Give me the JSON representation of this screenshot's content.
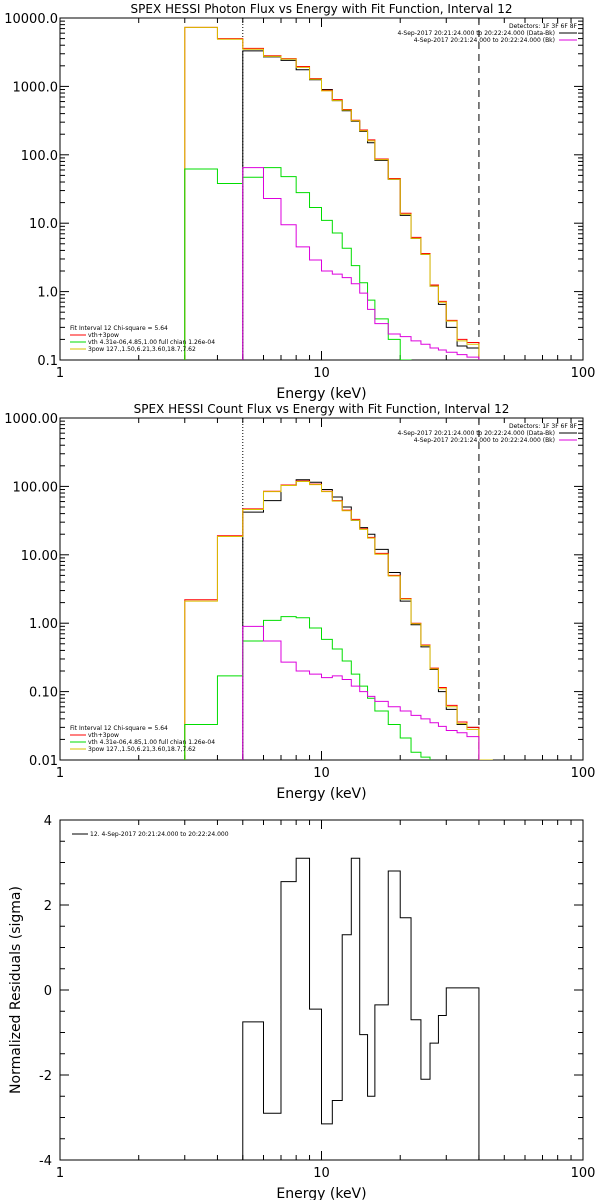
{
  "figure": {
    "panels": 3,
    "x_axis_scale": "log",
    "x_tick_labels": [
      "1",
      "10",
      "100"
    ]
  },
  "chart_data": [
    {
      "type": "line",
      "title": "SPEX HESSI Photon Flux vs Energy with Fit Function, Interval 12",
      "xlabel": "Energy (keV)",
      "ylabel": "",
      "xscale": "log",
      "yscale": "log",
      "xlim": [
        1,
        100
      ],
      "ylim": [
        0.1,
        10000
      ],
      "y_tick_labels": [
        "0.1",
        "1.0",
        "10.0",
        "100.0",
        "1000.0",
        "10000.0"
      ],
      "legend_top": [
        "Detectors: 1F 3F 6F 8F",
        "4-Sep-2017 20:21:24.000 to 20:22:24.000 (Data-Bk)",
        "4-Sep-2017 20:21:24.000 to 20:22:24.000 (Bk)"
      ],
      "legend_top_placement": "top-right",
      "legend_bottom": [
        "Fit Interval 12   Chi-square = 5.64",
        "vth+3pow",
        "vth 4.31e-06,4.85,1.00  full chian 1.26e-04",
        "3pow 127.,1.50,6.21,3.60,18.7,7.62"
      ],
      "legend_bottom_placement": "bottom-left",
      "vlines": [
        5,
        40
      ],
      "series": [
        {
          "name": "Data-Bk",
          "color": "#000000",
          "edges": [
            5,
            6,
            7,
            8,
            9,
            10,
            11,
            12,
            13,
            14,
            15,
            16,
            18,
            20,
            22,
            24,
            26,
            28,
            30,
            33,
            36,
            40
          ],
          "values": [
            3300,
            2700,
            2400,
            1750,
            1250,
            900,
            620,
            440,
            310,
            220,
            150,
            83,
            44,
            13,
            6,
            3.5,
            1.2,
            0.65,
            0.3,
            0.16,
            0.15
          ]
        },
        {
          "name": "vth+3pow",
          "color": "#ff0000",
          "edges": [
            3,
            4,
            5,
            6,
            7,
            8,
            9,
            10,
            11,
            12,
            13,
            14,
            15,
            16,
            18,
            20,
            22,
            24,
            26,
            28,
            30,
            33,
            36,
            40
          ],
          "values": [
            7300,
            5000,
            3600,
            2800,
            2550,
            1950,
            1300,
            880,
            640,
            460,
            320,
            230,
            165,
            87,
            45,
            14,
            6.2,
            3.6,
            1.25,
            0.72,
            0.38,
            0.2,
            0.18
          ]
        },
        {
          "name": "3pow",
          "color": "#d8c000",
          "edges": [
            3,
            4,
            5,
            6,
            7,
            8,
            9,
            10,
            11,
            12,
            13,
            14,
            15,
            16,
            18,
            20,
            22,
            24,
            26,
            28,
            30,
            33,
            36,
            40
          ],
          "values": [
            7300,
            4900,
            3500,
            2750,
            2500,
            1900,
            1270,
            860,
            620,
            450,
            315,
            225,
            160,
            85,
            44,
            13.5,
            6,
            3.5,
            1.2,
            0.7,
            0.37,
            0.19,
            0.17
          ]
        },
        {
          "name": "vth",
          "color": "#00dd00",
          "edges": [
            3,
            4,
            5,
            6,
            7,
            8,
            9,
            10,
            11,
            12,
            13,
            14,
            15,
            16,
            18,
            20,
            22
          ],
          "values": [
            62,
            38,
            47,
            65,
            48,
            28,
            17,
            11,
            7.2,
            4.3,
            2.4,
            1.35,
            0.75,
            0.4,
            0.2,
            0.1
          ]
        },
        {
          "name": "Bk",
          "color": "#dd00dd",
          "edges": [
            5,
            6,
            7,
            8,
            9,
            10,
            11,
            12,
            13,
            14,
            15,
            16,
            18,
            20,
            22,
            24,
            26,
            28,
            30,
            33,
            36,
            40
          ],
          "values": [
            65,
            23,
            9.5,
            4.5,
            2.9,
            2.0,
            1.8,
            1.6,
            1.3,
            0.95,
            0.55,
            0.34,
            0.24,
            0.22,
            0.19,
            0.17,
            0.15,
            0.14,
            0.13,
            0.12,
            0.11
          ]
        }
      ]
    },
    {
      "type": "line",
      "title": "SPEX HESSI Count Flux vs Energy with Fit Function, Interval 12",
      "xlabel": "Energy (keV)",
      "ylabel": "",
      "xscale": "log",
      "yscale": "log",
      "xlim": [
        1,
        100
      ],
      "ylim": [
        0.01,
        1000
      ],
      "y_tick_labels": [
        "0.01",
        "0.10",
        "1.00",
        "10.00",
        "100.00",
        "1000.00"
      ],
      "legend_top": [
        "Detectors: 1F 3F 6F 8F",
        "4-Sep-2017 20:21:24.000 to 20:22:24.000 (Data-Bk)",
        "4-Sep-2017 20:21:24.000 to 20:22:24.000 (Bk)"
      ],
      "legend_top_placement": "top-right",
      "legend_bottom": [
        "Fit Interval 12   Chi-square = 5.64",
        "vth+3pow",
        "vth 4.31e-06,4.85,1.00  full chian 1.26e-04",
        "3pow 127.,1.50,6.21,3.60,18.7,7.62"
      ],
      "legend_bottom_placement": "bottom-left",
      "vlines": [
        5,
        40
      ],
      "series": [
        {
          "name": "Data-Bk",
          "color": "#000000",
          "edges": [
            5,
            6,
            7,
            8,
            9,
            10,
            11,
            12,
            13,
            14,
            15,
            16,
            18,
            20,
            22,
            24,
            26,
            28,
            30,
            33,
            36,
            40
          ],
          "values": [
            42,
            62,
            105,
            125,
            115,
            90,
            70,
            50,
            32,
            25,
            20,
            12,
            5.5,
            2.1,
            0.95,
            0.45,
            0.21,
            0.1,
            0.055,
            0.033,
            0.03
          ]
        },
        {
          "name": "vth+3pow",
          "color": "#ff0000",
          "edges": [
            3,
            4,
            5,
            6,
            7,
            8,
            9,
            10,
            11,
            12,
            13,
            14,
            15,
            16,
            18,
            20,
            22,
            24,
            26,
            28,
            30,
            33,
            36,
            40
          ],
          "values": [
            2.2,
            19,
            47,
            85,
            105,
            120,
            108,
            85,
            62,
            45,
            33,
            24,
            18,
            10.5,
            5,
            2.3,
            1.0,
            0.48,
            0.22,
            0.115,
            0.063,
            0.036,
            0.03
          ]
        },
        {
          "name": "3pow",
          "color": "#d8c000",
          "edges": [
            3,
            4,
            5,
            6,
            7,
            8,
            9,
            10,
            11,
            12,
            13,
            14,
            15,
            16,
            18,
            20,
            22,
            24,
            26,
            28,
            30,
            33,
            36,
            40,
            45
          ],
          "values": [
            2.1,
            18.5,
            46,
            84,
            103,
            118,
            106,
            84,
            61,
            44,
            32,
            23.5,
            17.5,
            10.2,
            4.9,
            2.25,
            0.98,
            0.47,
            0.215,
            0.11,
            0.06,
            0.034,
            0.028,
            0.01
          ]
        },
        {
          "name": "vth",
          "color": "#00dd00",
          "edges": [
            3,
            4,
            5,
            6,
            7,
            8,
            9,
            10,
            11,
            12,
            13,
            14,
            15,
            16,
            18,
            20,
            22,
            24,
            26
          ],
          "values": [
            0.033,
            0.17,
            0.55,
            1.1,
            1.25,
            1.2,
            0.85,
            0.58,
            0.42,
            0.28,
            0.18,
            0.12,
            0.08,
            0.052,
            0.033,
            0.021,
            0.013,
            0.011
          ]
        },
        {
          "name": "Bk",
          "color": "#dd00dd",
          "edges": [
            5,
            6,
            7,
            8,
            9,
            10,
            11,
            12,
            13,
            14,
            15,
            16,
            18,
            20,
            22,
            24,
            26,
            28,
            30,
            33,
            36,
            40
          ],
          "values": [
            0.9,
            0.55,
            0.27,
            0.2,
            0.18,
            0.16,
            0.17,
            0.15,
            0.12,
            0.1,
            0.085,
            0.072,
            0.06,
            0.052,
            0.045,
            0.04,
            0.035,
            0.031,
            0.027,
            0.025,
            0.022
          ]
        }
      ]
    },
    {
      "type": "line",
      "title": "",
      "xlabel": "Energy (keV)",
      "ylabel": "Normalized Residuals (sigma)",
      "xscale": "log",
      "yscale": "linear",
      "xlim": [
        1,
        100
      ],
      "ylim": [
        -4,
        4
      ],
      "y_tick_labels": [
        "-4",
        "-2",
        "0",
        "2",
        "4"
      ],
      "legend_top": [
        "12.  4-Sep-2017 20:21:24.000 to 20:22:24.000"
      ],
      "legend_top_placement": "top-left",
      "series": [
        {
          "name": "12.  4-Sep-2017 20:21:24.000 to 20:22:24.000",
          "color": "#000000",
          "edges": [
            5,
            6,
            7,
            8,
            9,
            10,
            11,
            12,
            13,
            14,
            15,
            16,
            18,
            20,
            22,
            24,
            26,
            28,
            30,
            33,
            36,
            40
          ],
          "values": [
            -0.75,
            -2.9,
            2.55,
            3.1,
            -0.45,
            -3.15,
            -2.6,
            1.3,
            3.1,
            -1.05,
            -2.5,
            -0.35,
            2.8,
            1.7,
            -0.7,
            -2.1,
            -1.25,
            -0.6,
            0.05,
            0.05,
            0.05
          ]
        }
      ]
    }
  ]
}
